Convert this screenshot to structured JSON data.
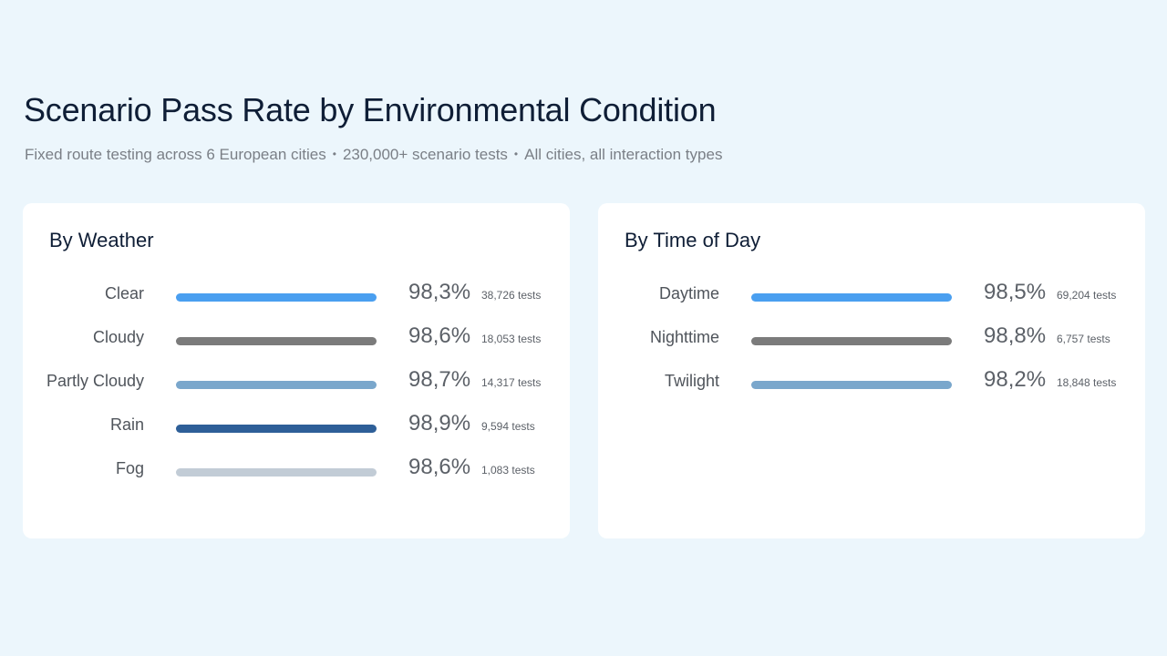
{
  "header": {
    "title": "Scenario Pass Rate by Environmental Condition",
    "subtitle_parts": [
      "Fixed route testing across 6 European cities",
      "230,000+ scenario tests",
      "All cities, all interaction types"
    ],
    "separator": "•"
  },
  "chart_data": [
    {
      "type": "bar",
      "title": "By Weather",
      "categories": [
        "Clear",
        "Cloudy",
        "Partly Cloudy",
        "Rain",
        "Fog"
      ],
      "values": [
        98.3,
        98.6,
        98.7,
        98.9,
        98.6
      ],
      "value_labels": [
        "98,3%",
        "98,6%",
        "98,7%",
        "98,9%",
        "98,6%"
      ],
      "test_labels": [
        "38,726 tests",
        "18,053 tests",
        "14,317 tests",
        "9,594 tests",
        "1,083 tests"
      ],
      "colors": [
        "#4a9ff0",
        "#7b7b7b",
        "#7aa7cc",
        "#2e5f98",
        "#c2ccd6"
      ]
    },
    {
      "type": "bar",
      "title": "By Time of Day",
      "categories": [
        "Daytime",
        "Nighttime",
        "Twilight"
      ],
      "values": [
        98.5,
        98.8,
        98.2
      ],
      "value_labels": [
        "98,5%",
        "98,8%",
        "98,2%"
      ],
      "test_labels": [
        "69,204 tests",
        "6,757 tests",
        "18,848 tests"
      ],
      "colors": [
        "#4a9ff0",
        "#7b7b7b",
        "#7aa7cc"
      ]
    }
  ]
}
